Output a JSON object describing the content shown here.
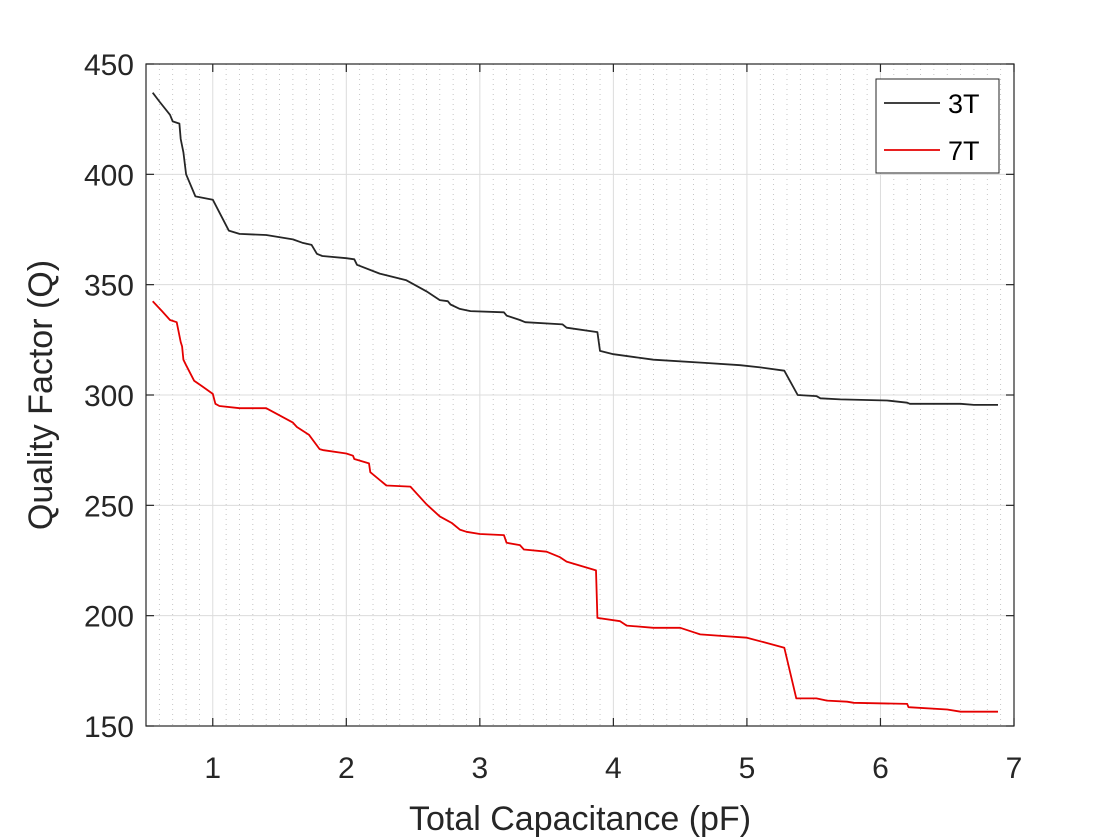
{
  "chart_data": {
    "type": "line",
    "xlabel": "Total Capacitance (pF)",
    "ylabel": "Quality Factor (Q)",
    "xlim": [
      0.5,
      7
    ],
    "ylim": [
      150,
      450
    ],
    "xticks": [
      1,
      2,
      3,
      4,
      5,
      6,
      7
    ],
    "yticks": [
      150,
      200,
      250,
      300,
      350,
      400,
      450
    ],
    "grid": true,
    "minor_grid_x": true,
    "legend_position": "top-right",
    "series": [
      {
        "name": "3T",
        "color": "#262626",
        "points": [
          [
            0.55,
            437
          ],
          [
            0.6,
            433
          ],
          [
            0.68,
            427
          ],
          [
            0.7,
            424
          ],
          [
            0.75,
            423
          ],
          [
            0.76,
            416
          ],
          [
            0.78,
            410
          ],
          [
            0.8,
            400
          ],
          [
            0.87,
            390
          ],
          [
            1.0,
            388.5
          ],
          [
            1.12,
            374.5
          ],
          [
            1.2,
            373
          ],
          [
            1.4,
            372.5
          ],
          [
            1.6,
            370.5
          ],
          [
            1.67,
            369
          ],
          [
            1.74,
            368
          ],
          [
            1.78,
            364
          ],
          [
            1.82,
            363
          ],
          [
            2.0,
            362
          ],
          [
            2.06,
            361.5
          ],
          [
            2.08,
            359
          ],
          [
            2.25,
            355
          ],
          [
            2.45,
            352
          ],
          [
            2.6,
            347
          ],
          [
            2.7,
            343
          ],
          [
            2.76,
            342.5
          ],
          [
            2.78,
            341
          ],
          [
            2.85,
            339
          ],
          [
            2.93,
            338
          ],
          [
            3.18,
            337.5
          ],
          [
            3.2,
            336
          ],
          [
            3.3,
            334
          ],
          [
            3.34,
            333
          ],
          [
            3.62,
            332
          ],
          [
            3.65,
            330.5
          ],
          [
            3.88,
            328.5
          ],
          [
            3.9,
            320
          ],
          [
            4.0,
            318.5
          ],
          [
            4.18,
            317
          ],
          [
            4.3,
            316
          ],
          [
            4.7,
            314.5
          ],
          [
            4.95,
            313.5
          ],
          [
            5.1,
            312.5
          ],
          [
            5.28,
            311
          ],
          [
            5.38,
            300
          ],
          [
            5.52,
            299.5
          ],
          [
            5.55,
            298.5
          ],
          [
            5.7,
            298
          ],
          [
            6.05,
            297.5
          ],
          [
            6.2,
            296.5
          ],
          [
            6.22,
            296
          ],
          [
            6.6,
            296
          ],
          [
            6.7,
            295.5
          ],
          [
            6.88,
            295.5
          ]
        ]
      },
      {
        "name": "7T",
        "color": "#e50000",
        "points": [
          [
            0.55,
            342.5
          ],
          [
            0.62,
            338
          ],
          [
            0.68,
            334
          ],
          [
            0.73,
            333
          ],
          [
            0.76,
            324
          ],
          [
            0.77,
            322
          ],
          [
            0.78,
            316
          ],
          [
            0.8,
            313.5
          ],
          [
            0.86,
            306.5
          ],
          [
            0.92,
            304
          ],
          [
            1.0,
            300.5
          ],
          [
            1.02,
            296
          ],
          [
            1.05,
            295
          ],
          [
            1.2,
            294
          ],
          [
            1.4,
            294
          ],
          [
            1.6,
            287.5
          ],
          [
            1.63,
            285.5
          ],
          [
            1.72,
            282
          ],
          [
            1.8,
            275.5
          ],
          [
            1.83,
            275
          ],
          [
            2.0,
            273.5
          ],
          [
            2.05,
            272.5
          ],
          [
            2.06,
            271
          ],
          [
            2.17,
            269
          ],
          [
            2.18,
            265
          ],
          [
            2.3,
            259
          ],
          [
            2.48,
            258.5
          ],
          [
            2.6,
            250.5
          ],
          [
            2.7,
            245
          ],
          [
            2.76,
            243
          ],
          [
            2.79,
            242
          ],
          [
            2.85,
            239
          ],
          [
            2.9,
            238
          ],
          [
            3.0,
            237
          ],
          [
            3.18,
            236.5
          ],
          [
            3.2,
            233
          ],
          [
            3.3,
            232
          ],
          [
            3.33,
            230
          ],
          [
            3.5,
            229
          ],
          [
            3.6,
            226.5
          ],
          [
            3.65,
            224.5
          ],
          [
            3.87,
            220.5
          ],
          [
            3.88,
            199
          ],
          [
            4.05,
            197.5
          ],
          [
            4.1,
            195.5
          ],
          [
            4.3,
            194.5
          ],
          [
            4.5,
            194.5
          ],
          [
            4.6,
            192.5
          ],
          [
            4.65,
            191.5
          ],
          [
            5.0,
            190
          ],
          [
            5.28,
            185.5
          ],
          [
            5.37,
            162.5
          ],
          [
            5.52,
            162.5
          ],
          [
            5.6,
            161.5
          ],
          [
            5.75,
            161
          ],
          [
            5.8,
            160.5
          ],
          [
            6.2,
            160
          ],
          [
            6.21,
            158.5
          ],
          [
            6.5,
            157.5
          ],
          [
            6.6,
            156.5
          ],
          [
            6.88,
            156.5
          ]
        ]
      }
    ]
  }
}
